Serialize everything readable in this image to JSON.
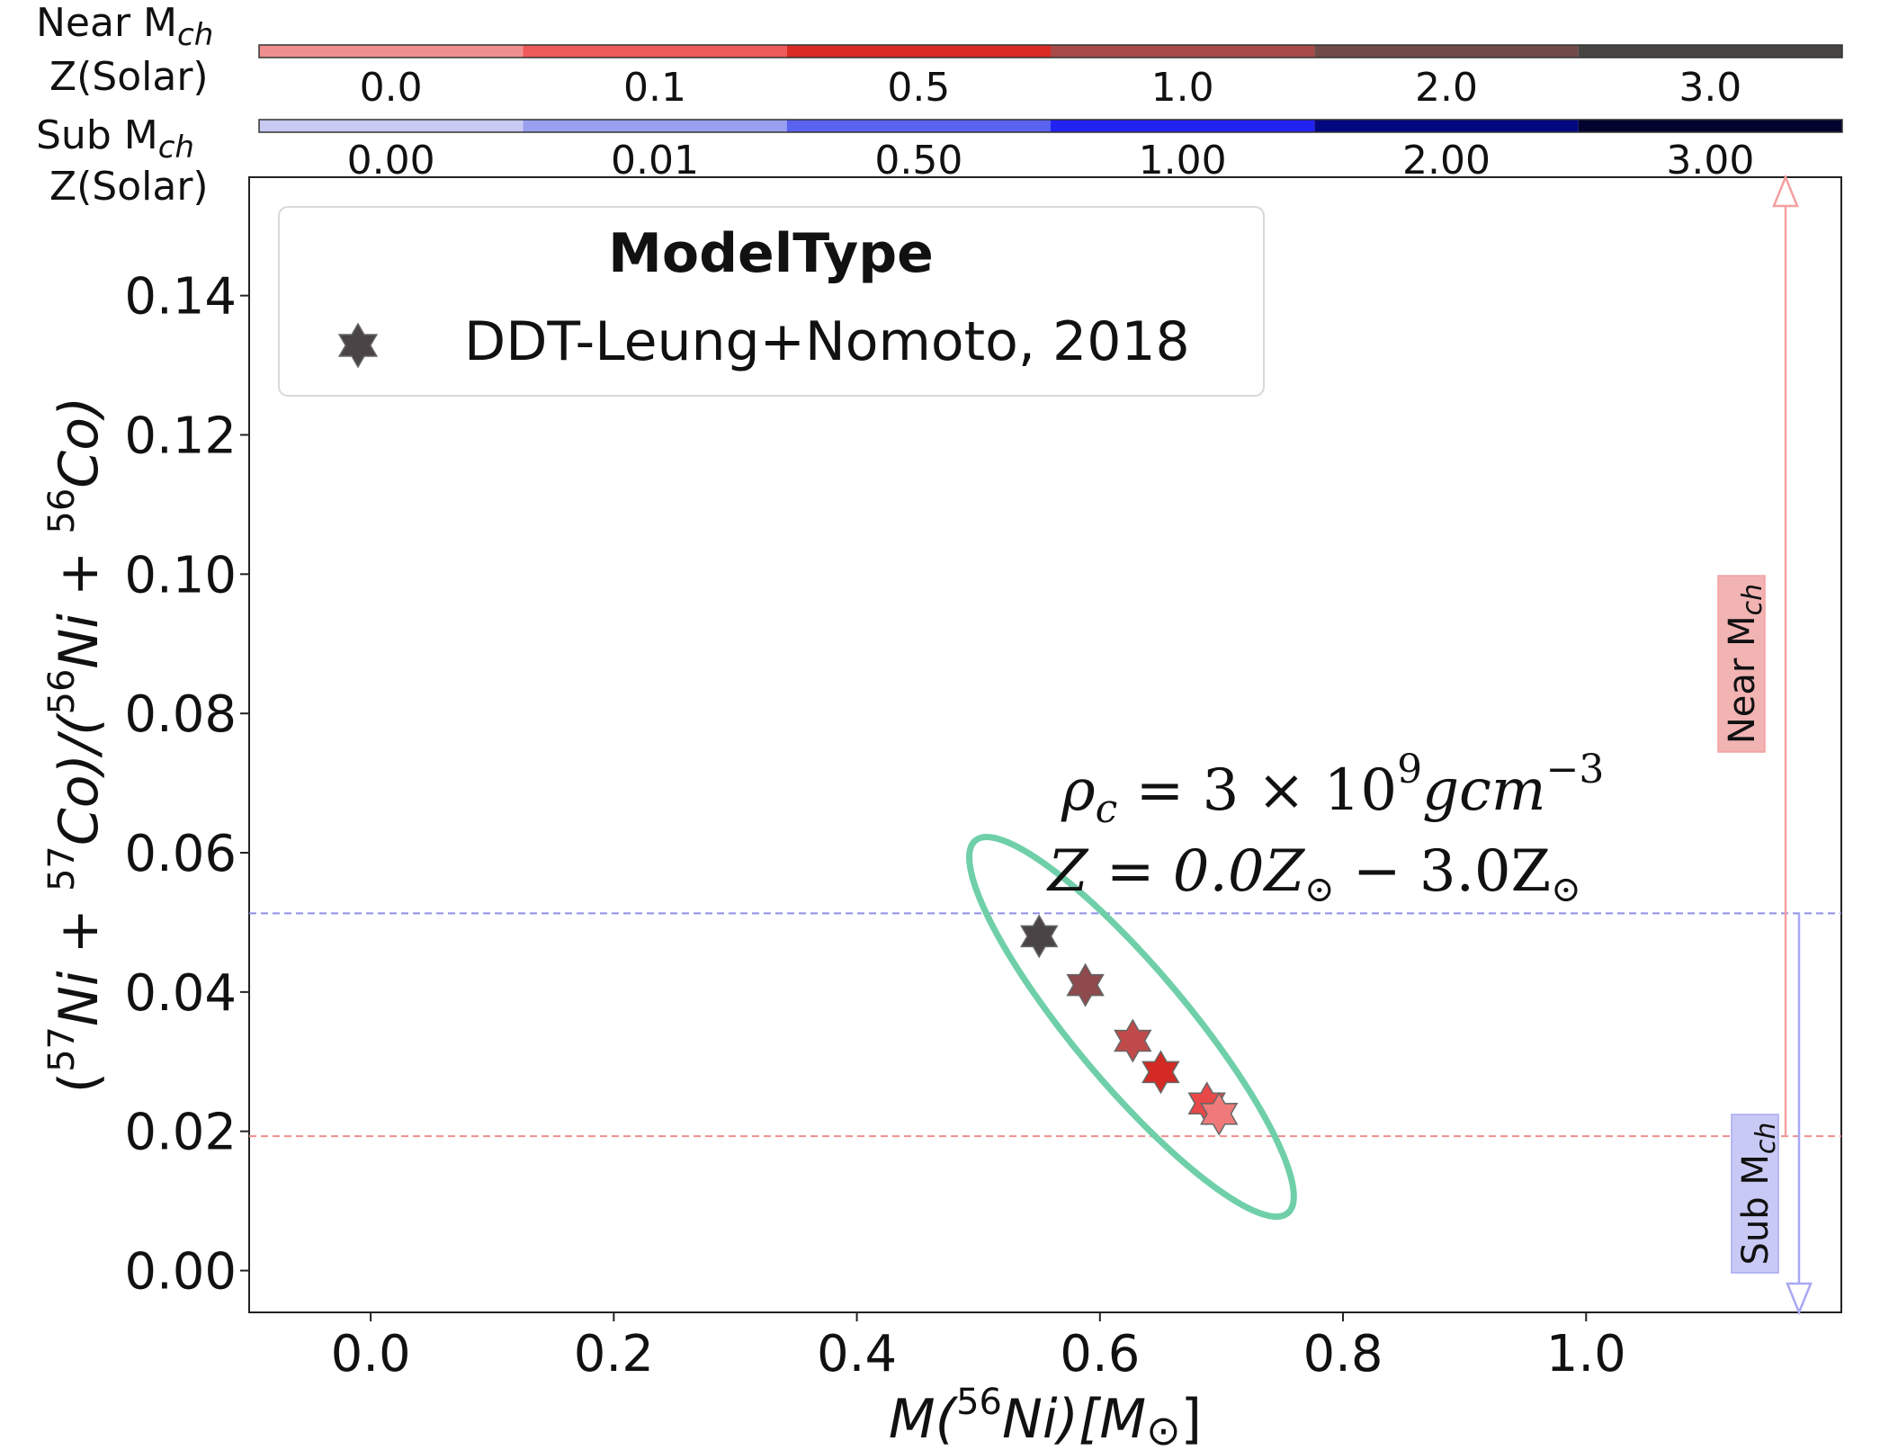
{
  "chart_data": {
    "type": "scatter",
    "title": "",
    "xlabel": {
      "prefix": "M(",
      "sup": "56",
      "mid": "Ni)[M",
      "sun": "⊙",
      "suffix": "]"
    },
    "ylabel": {
      "p1": "(",
      "s1": "57",
      "t1": "Ni + ",
      "s2": "57",
      "t2": "Co)/(",
      "s3": "56",
      "t3": "Ni + ",
      "s4": "56",
      "t4": "Co)"
    },
    "xlim": [
      -0.1,
      1.21
    ],
    "ylim": [
      -0.006,
      0.157
    ],
    "xticks": [
      {
        "v": 0.0,
        "label": "0.0"
      },
      {
        "v": 0.2,
        "label": "0.2"
      },
      {
        "v": 0.4,
        "label": "0.4"
      },
      {
        "v": 0.6,
        "label": "0.6"
      },
      {
        "v": 0.8,
        "label": "0.8"
      },
      {
        "v": 1.0,
        "label": "1.0"
      }
    ],
    "yticks": [
      {
        "v": 0.0,
        "label": "0.00"
      },
      {
        "v": 0.02,
        "label": "0.02"
      },
      {
        "v": 0.04,
        "label": "0.04"
      },
      {
        "v": 0.06,
        "label": "0.06"
      },
      {
        "v": 0.08,
        "label": "0.08"
      },
      {
        "v": 0.1,
        "label": "0.10"
      },
      {
        "v": 0.12,
        "label": "0.12"
      },
      {
        "v": 0.14,
        "label": "0.14"
      }
    ],
    "series": [
      {
        "name": "DDT-Leung+Nomoto, 2018",
        "marker": "star",
        "points": [
          {
            "x": 0.55,
            "y": 0.048,
            "color": "#4a4446"
          },
          {
            "x": 0.588,
            "y": 0.041,
            "color": "#8e4a4c"
          },
          {
            "x": 0.627,
            "y": 0.033,
            "color": "#c04a4a"
          },
          {
            "x": 0.65,
            "y": 0.0285,
            "color": "#d42a24"
          },
          {
            "x": 0.688,
            "y": 0.024,
            "color": "#e84848"
          },
          {
            "x": 0.698,
            "y": 0.0225,
            "color": "#f07a7a"
          }
        ]
      }
    ],
    "hlines": [
      {
        "name": "sub-mch-threshold",
        "y": 0.0513,
        "color": "#8f8fe8"
      },
      {
        "name": "near-mch-threshold",
        "y": 0.0193,
        "color": "#ef8f8f"
      }
    ],
    "ellipse": {
      "cx": 0.626,
      "cy": 0.035,
      "rx": 0.2,
      "ry": 0.0082,
      "angle_deg": 50,
      "color": "#6fcfa8"
    },
    "legend": {
      "title": "ModelType",
      "entries": [
        "DDT-Leung+Nomoto, 2018"
      ],
      "location": "upper-left",
      "marker_color": "#4a4446"
    },
    "annotation": {
      "line1": {
        "rho": "ρ",
        "sub": "c",
        "eq": " = 3 × 10",
        "sup": "9",
        "unit": "gcm",
        "exp": "−3"
      },
      "line2": {
        "z": "Z = 0.0Z",
        "sun1": "⊙",
        "mid": " − 3.0Z",
        "sun2": "⊙"
      }
    },
    "range_arrows": {
      "near": {
        "label": "Near M",
        "sub": "ch",
        "from_y": 0.0193,
        "to_y": 0.157,
        "color": "#f4a0a0",
        "box_color": "#f2b3b3"
      },
      "sub": {
        "label": "Sub M",
        "sub": "ch",
        "from_y": 0.0513,
        "to_y": -0.006,
        "color": "#a8a8f4",
        "box_color": "#c9c9f6"
      }
    },
    "colorbars": [
      {
        "name": "near-mch-colorbar",
        "title": "Near M",
        "title_sub": "ch",
        "sublabel": "Z(Solar)",
        "colors": [
          "#f08f8f",
          "#ee5a5a",
          "#d92a24",
          "#a84a48",
          "#6f4a48",
          "#484444"
        ],
        "labels": [
          "0.0",
          "0.1",
          "0.5",
          "1.0",
          "2.0",
          "3.0"
        ]
      },
      {
        "name": "sub-mch-colorbar",
        "title": "Sub M",
        "title_sub": "ch",
        "sublabel": "Z(Solar)",
        "colors": [
          "#c8caf4",
          "#9aa0f0",
          "#5a62f0",
          "#2222f2",
          "#040880",
          "#030330"
        ],
        "labels": [
          "0.00",
          "0.01",
          "0.50",
          "1.00",
          "2.00",
          "3.00"
        ]
      }
    ]
  }
}
